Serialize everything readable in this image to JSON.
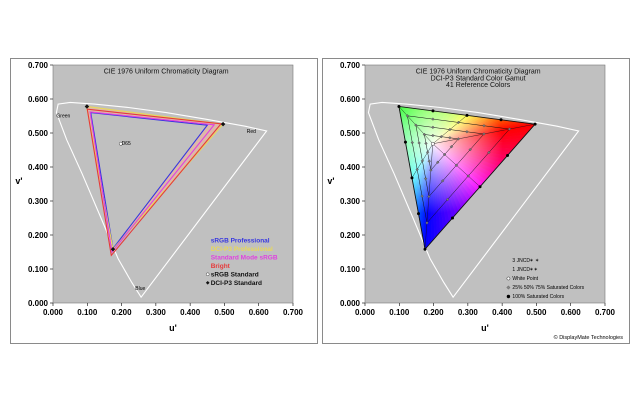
{
  "chart_data": [
    {
      "type": "scatter",
      "title": "CIE 1976 Uniform Chromaticity Diagram",
      "xlabel": "u'",
      "ylabel": "v'",
      "xlim": [
        0,
        0.7
      ],
      "ylim": [
        0,
        0.7
      ],
      "xticks": [
        "0.000",
        "0.100",
        "0.200",
        "0.300",
        "0.400",
        "0.500",
        "0.600",
        "0.700"
      ],
      "yticks": [
        "0.000",
        "0.100",
        "0.200",
        "0.300",
        "0.400",
        "0.500",
        "0.600",
        "0.700"
      ],
      "grid": false,
      "background": "#c0c0c0",
      "locus": [
        [
          0.257,
          0.017
        ],
        [
          0.23,
          0.06
        ],
        [
          0.19,
          0.13
        ],
        [
          0.14,
          0.25
        ],
        [
          0.085,
          0.38
        ],
        [
          0.04,
          0.48
        ],
        [
          0.01,
          0.56
        ],
        [
          0.015,
          0.585
        ],
        [
          0.05,
          0.59
        ],
        [
          0.12,
          0.585
        ],
        [
          0.22,
          0.575
        ],
        [
          0.33,
          0.56
        ],
        [
          0.45,
          0.54
        ],
        [
          0.56,
          0.52
        ],
        [
          0.623,
          0.506
        ]
      ],
      "corner_labels": [
        {
          "text": "Green",
          "u": 0.01,
          "v": 0.545
        },
        {
          "text": "Red",
          "u": 0.565,
          "v": 0.5
        },
        {
          "text": "Blue",
          "u": 0.24,
          "v": 0.038
        },
        {
          "text": "D65",
          "u": 0.2,
          "v": 0.465
        }
      ],
      "white_point": {
        "name": "D65",
        "u": 0.1978,
        "v": 0.4683
      },
      "series": [
        {
          "name": "sRGB Professional",
          "color": "#3535e0",
          "points": [
            [
              0.11,
              0.56
            ],
            [
              0.45,
              0.523
            ],
            [
              0.175,
              0.16
            ]
          ]
        },
        {
          "name": "DCI-P3 Professional",
          "color": "#e8d858",
          "points": [
            [
              0.098,
              0.578
            ],
            [
              0.496,
              0.526
            ],
            [
              0.175,
              0.158
            ]
          ]
        },
        {
          "name": "Standard Mode sRGB",
          "color": "#e040e0",
          "points": [
            [
              0.108,
              0.562
            ],
            [
              0.47,
              0.524
            ],
            [
              0.172,
              0.15
            ]
          ]
        },
        {
          "name": "Bright",
          "color": "#e63a3a",
          "points": [
            [
              0.1,
              0.57
            ],
            [
              0.49,
              0.527
            ],
            [
              0.17,
              0.14
            ]
          ]
        },
        {
          "name": "sRGB Standard",
          "color": "#ffffff",
          "marker": "circle",
          "points": [
            [
              0.15,
              0.562
            ],
            [
              0.47,
              0.52
            ],
            [
              0.175,
              0.158
            ]
          ]
        },
        {
          "name": "DCI-P3 Standard",
          "color": "#111111",
          "marker": "diamond",
          "points": [
            [
              0.099,
              0.578
            ],
            [
              0.496,
              0.526
            ],
            [
              0.175,
              0.158
            ]
          ]
        }
      ]
    },
    {
      "type": "scatter",
      "title": "CIE 1976 Uniform Chromaticity Diagram",
      "subtitle": "DCI-P3 Standard Color Gamut",
      "subtitle2": "41 Reference Colors",
      "xlabel": "u'",
      "ylabel": "v'",
      "xlim": [
        0,
        0.7
      ],
      "ylim": [
        0,
        0.7
      ],
      "xticks": [
        "0.000",
        "0.100",
        "0.200",
        "0.300",
        "0.400",
        "0.500",
        "0.600",
        "0.700"
      ],
      "yticks": [
        "0.000",
        "0.100",
        "0.200",
        "0.300",
        "0.400",
        "0.500",
        "0.600",
        "0.700"
      ],
      "grid": false,
      "background": "#c0c0c0",
      "locus": [
        [
          0.257,
          0.017
        ],
        [
          0.23,
          0.06
        ],
        [
          0.19,
          0.13
        ],
        [
          0.14,
          0.25
        ],
        [
          0.085,
          0.38
        ],
        [
          0.04,
          0.48
        ],
        [
          0.01,
          0.56
        ],
        [
          0.015,
          0.585
        ],
        [
          0.05,
          0.59
        ],
        [
          0.12,
          0.585
        ],
        [
          0.22,
          0.575
        ],
        [
          0.33,
          0.56
        ],
        [
          0.45,
          0.54
        ],
        [
          0.56,
          0.52
        ],
        [
          0.623,
          0.506
        ]
      ],
      "gamut": {
        "green": [
          0.099,
          0.578
        ],
        "red": [
          0.496,
          0.526
        ],
        "blue": [
          0.175,
          0.158
        ],
        "white": [
          0.1978,
          0.4683
        ]
      },
      "saturation_levels": [
        0.25,
        0.5,
        0.75,
        1.0
      ],
      "legend": [
        {
          "text": "3 JNCD",
          "symbol": "✶ ✶"
        },
        {
          "text": "1 JNCD",
          "symbol": "✶✶"
        },
        {
          "text": "White Point",
          "marker": "circle-open"
        },
        {
          "text": "25% 50% 75% Saturated Colors",
          "marker": "diamond-gray"
        },
        {
          "text": "100% Saturated Colors",
          "marker": "circle-black"
        }
      ]
    }
  ],
  "credit": "© DisplayMate Technologies"
}
